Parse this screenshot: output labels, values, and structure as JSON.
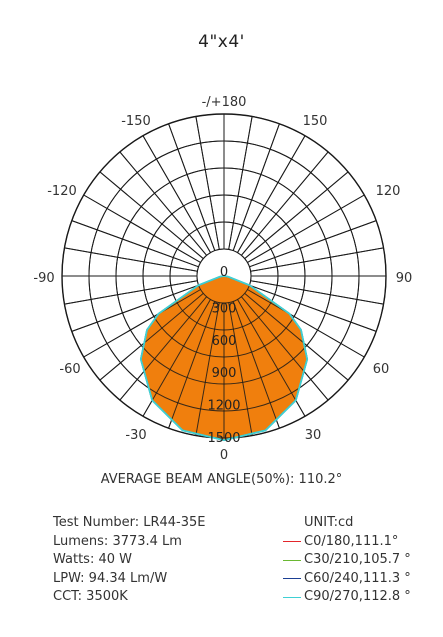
{
  "title": "4\"x4'",
  "beam_angle_text": "AVERAGE BEAM ANGLE(50%): 110.2°",
  "info": [
    "Test Number: LR44-35E",
    "Lumens: 3773.4 Lm",
    "Watts: 40 W",
    "LPW: 94.34 Lm/W",
    "CCT: 3500K"
  ],
  "legend": {
    "unit": "UNIT:cd",
    "items": [
      {
        "label": "C0/180,111.1°",
        "color": "#e3262b"
      },
      {
        "label": "C30/210,105.7 °",
        "color": "#6ab832"
      },
      {
        "label": "C60/240,111.3 °",
        "color": "#1b3f93"
      },
      {
        "label": "C90/270,112.8 °",
        "color": "#3fd0d4"
      }
    ]
  },
  "chart_data": {
    "type": "polar",
    "title": "4\"x4'",
    "angle_ticks": [
      "-/+180",
      "-150",
      "150",
      "-120",
      "120",
      "-90",
      "90",
      "-60",
      "60",
      "-30",
      "30",
      "0"
    ],
    "radial_ticks": [
      0,
      300,
      600,
      900,
      1200,
      1500
    ],
    "rmax": 1500,
    "fill_color": "#f07f0d",
    "series": [
      {
        "name": "C0/180,111.1°",
        "color": "#e3262b",
        "angles": [
          0,
          15,
          30,
          45,
          55,
          60,
          70,
          80,
          90
        ],
        "values": [
          1520,
          1480,
          1330,
          1090,
          870,
          700,
          250,
          40,
          0
        ]
      },
      {
        "name": "C30/210,105.7 °",
        "color": "#6ab832",
        "angles": [
          0,
          15,
          30,
          45,
          55,
          60,
          70,
          80,
          90
        ],
        "values": [
          1520,
          1480,
          1330,
          1090,
          870,
          700,
          250,
          40,
          0
        ]
      },
      {
        "name": "C60/240,111.3 °",
        "color": "#1b3f93",
        "angles": [
          0,
          15,
          30,
          45,
          55,
          60,
          70,
          80,
          90
        ],
        "values": [
          1520,
          1480,
          1330,
          1090,
          870,
          700,
          250,
          40,
          0
        ]
      },
      {
        "name": "C90/270,112.8 °",
        "color": "#3fd0d4",
        "angles": [
          0,
          15,
          30,
          45,
          55,
          60,
          70,
          80,
          90
        ],
        "values": [
          1520,
          1480,
          1330,
          1090,
          870,
          700,
          250,
          40,
          0
        ]
      }
    ]
  }
}
